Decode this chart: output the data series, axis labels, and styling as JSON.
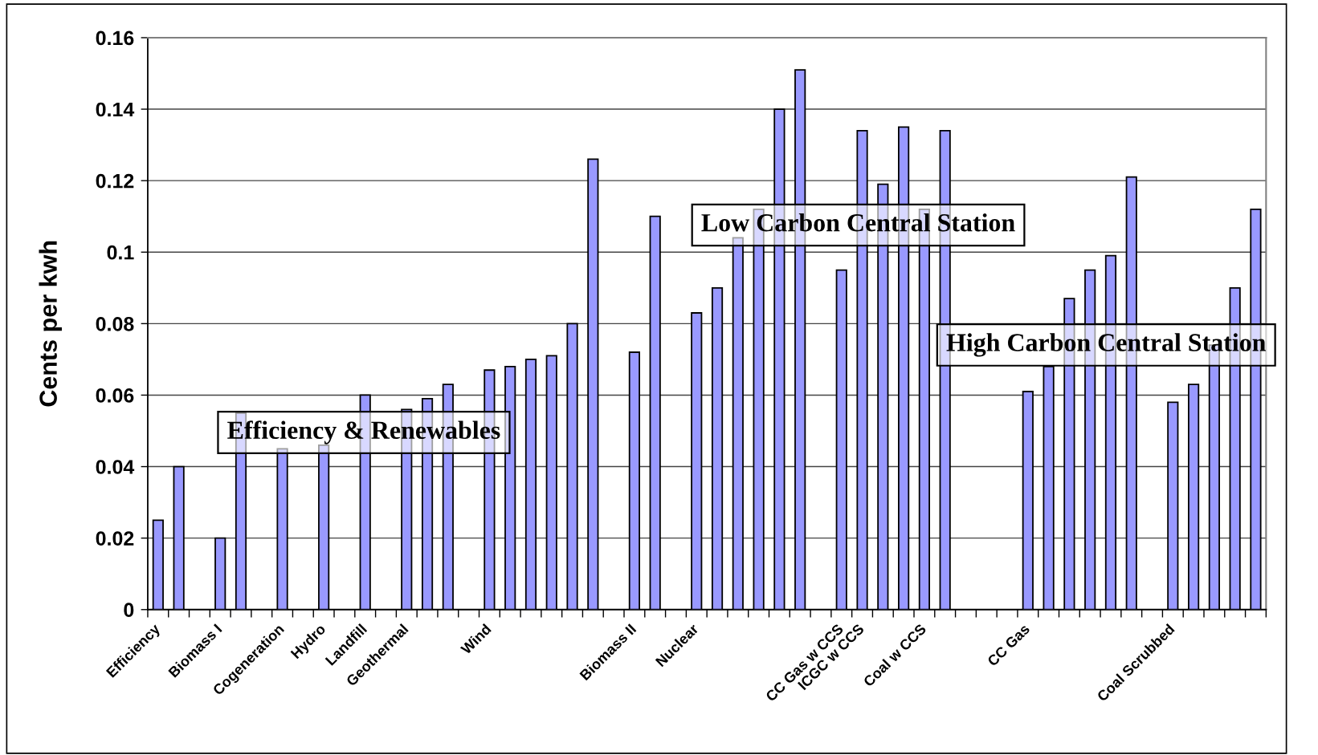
{
  "chart_data": {
    "type": "bar",
    "ylabel": "Cents per kwh",
    "categories": [
      "Efficiency",
      null,
      null,
      "Biomass I",
      null,
      null,
      "Cogeneration",
      null,
      "Hydro",
      null,
      "Landfill",
      null,
      "Geothermal",
      null,
      null,
      null,
      "Wind",
      null,
      null,
      null,
      null,
      null,
      null,
      "Biomass II",
      null,
      null,
      "Nuclear",
      null,
      null,
      null,
      null,
      null,
      null,
      "CC Gas w CCS",
      "ICGC w CCS",
      null,
      null,
      "Coal w CCS",
      null,
      null,
      null,
      null,
      "CC Gas",
      null,
      null,
      null,
      null,
      null,
      null,
      "Coal Scrubbed",
      null,
      null,
      null,
      null
    ],
    "values": [
      0.025,
      0.04,
      null,
      0.02,
      0.055,
      null,
      0.045,
      null,
      0.046,
      null,
      0.06,
      null,
      0.056,
      0.059,
      0.063,
      null,
      0.067,
      0.068,
      0.07,
      0.071,
      0.08,
      0.126,
      null,
      0.072,
      0.11,
      null,
      0.083,
      0.09,
      0.104,
      0.112,
      0.14,
      0.151,
      null,
      0.095,
      0.134,
      0.119,
      0.135,
      0.112,
      0.134,
      null,
      null,
      null,
      0.061,
      0.068,
      0.087,
      0.095,
      0.099,
      0.121,
      null,
      0.058,
      0.063,
      0.074,
      0.09,
      0.112
    ],
    "color": "#9999ff",
    "ylim": [
      0,
      0.16
    ],
    "yticks": [
      0,
      0.02,
      0.04,
      0.06,
      0.08,
      0.1,
      0.12,
      0.14,
      0.16
    ],
    "grid": "y",
    "annotations": [
      "Efficiency & Renewables",
      "Low Carbon Central Station",
      "High Carbon Central Station"
    ]
  }
}
